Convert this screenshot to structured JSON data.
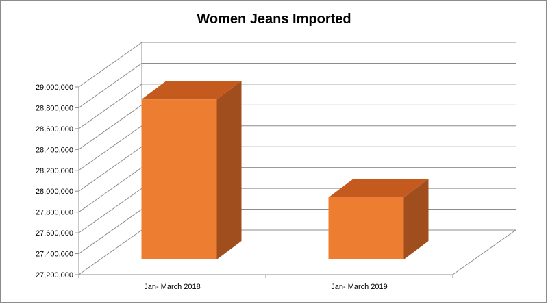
{
  "chart_data": {
    "type": "bar",
    "title": "Women Jeans Imported",
    "xlabel": "",
    "ylabel": "",
    "categories": [
      "Jan- March 2018",
      "Jan- March 2019"
    ],
    "series": [
      {
        "values": [
          28880000,
          27940000
        ]
      }
    ],
    "ylim": [
      27200000,
      29000000
    ],
    "yticks": [
      27200000,
      27400000,
      27600000,
      27800000,
      28000000,
      28200000,
      28400000,
      28600000,
      28800000,
      29000000
    ],
    "ytick_labels": [
      "27,200,000",
      "27,400,000",
      "27,600,000",
      "27,800,000",
      "28,000,000",
      "28,200,000",
      "28,400,000",
      "28,600,000",
      "28,800,000",
      "29,000,000"
    ],
    "grid": true,
    "legend": "none",
    "bar_style": "3d",
    "colors": {
      "bar_front": "#ED7D31",
      "bar_top": "#C55A1E",
      "bar_side": "#A04E1D",
      "grid": "#8c8c8c"
    }
  }
}
